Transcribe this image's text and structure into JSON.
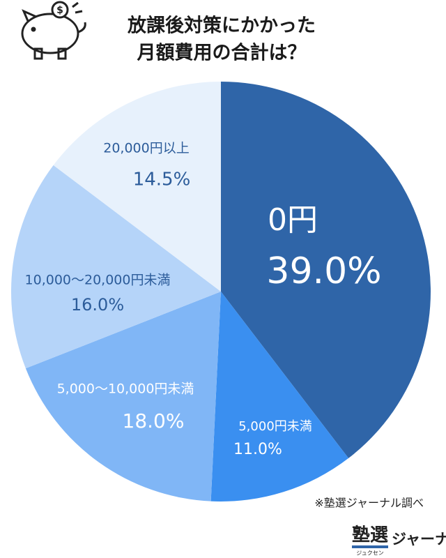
{
  "chart_data": {
    "type": "pie",
    "title": [
      "放課後対策にかかった",
      "月額費用の合計は？"
    ],
    "categories": [
      "0円",
      "5,000円未満",
      "5,000〜10,000円未満",
      "10,000〜20,000円未満",
      "20,000円以上"
    ],
    "values": [
      39.0,
      11.0,
      18.0,
      16.0,
      14.5
    ],
    "value_labels": [
      "39.0%",
      "11.0%",
      "18.0%",
      "16.0%",
      "14.5%"
    ],
    "colors": [
      "#2f65a8",
      "#3a8ff0",
      "#80b6f6",
      "#b5d4f9",
      "#e7f1fc"
    ],
    "label_colors": [
      "#ffffff",
      "#ffffff",
      "#ffffff",
      "#2c5c9a",
      "#2c5c9a"
    ],
    "source": "※塾選ジャーナル調べ"
  },
  "logo": {
    "main": "塾選",
    "reading": "ジュクセン",
    "sub": "ジャーナル"
  }
}
